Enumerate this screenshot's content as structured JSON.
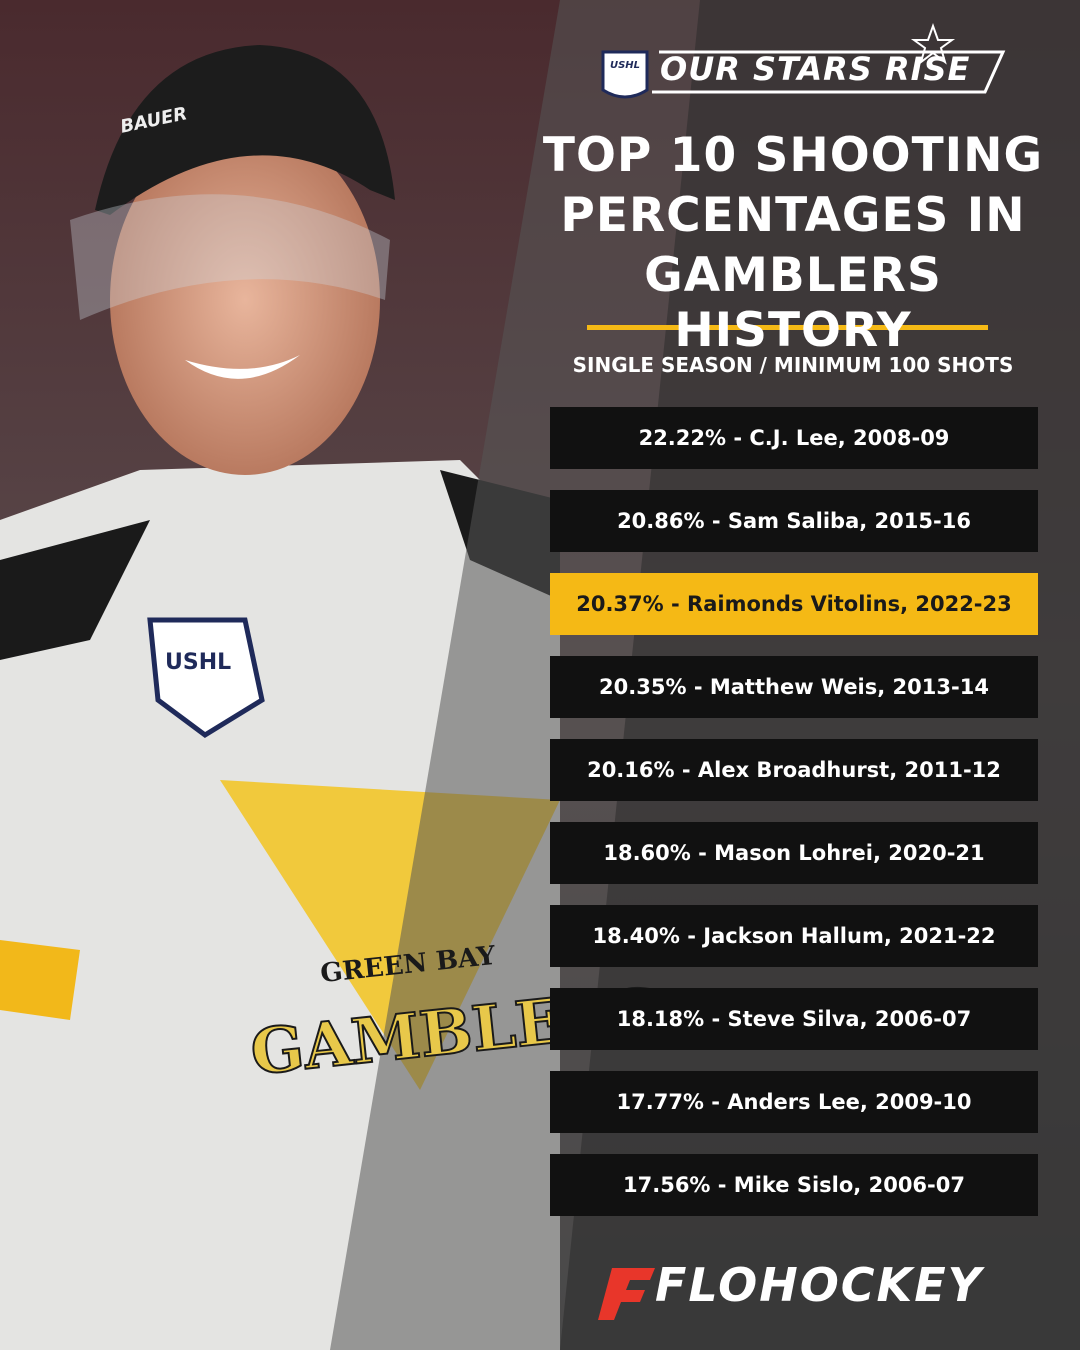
{
  "header": {
    "league_badge": "USHL",
    "slogan": "OUR STARS RISE"
  },
  "title_lines": [
    "TOP 10 SHOOTING",
    "PERCENTAGES IN",
    "GAMBLERS HISTORY"
  ],
  "subtitle": "SINGLE SEASON /  MINIMUM 100 SHOTS",
  "entries": [
    {
      "text": "22.22% - C.J. Lee, 2008-09",
      "highlighted": false
    },
    {
      "text": "20.86% - Sam Saliba, 2015-16",
      "highlighted": false
    },
    {
      "text": "20.37% - Raimonds Vitolins, 2022-23",
      "highlighted": true
    },
    {
      "text": "20.35% - Matthew Weis, 2013-14",
      "highlighted": false
    },
    {
      "text": "20.16% - Alex Broadhurst, 2011-12",
      "highlighted": false
    },
    {
      "text": "18.60% - Mason Lohrei, 2020-21",
      "highlighted": false
    },
    {
      "text": "18.40% - Jackson Hallum, 2021-22",
      "highlighted": false
    },
    {
      "text": "18.18% - Steve Silva, 2006-07",
      "highlighted": false
    },
    {
      "text": "17.77% - Anders Lee, 2009-10",
      "highlighted": false
    },
    {
      "text": "17.56% - Mike Sislo, 2006-07",
      "highlighted": false
    }
  ],
  "photo": {
    "helmet_brand": "BAUER",
    "patch": "USHL",
    "crest_top": "GREEN BAY",
    "crest_name": "GAMBLERS"
  },
  "footer": {
    "brand": "FLOHOCKEY"
  }
}
